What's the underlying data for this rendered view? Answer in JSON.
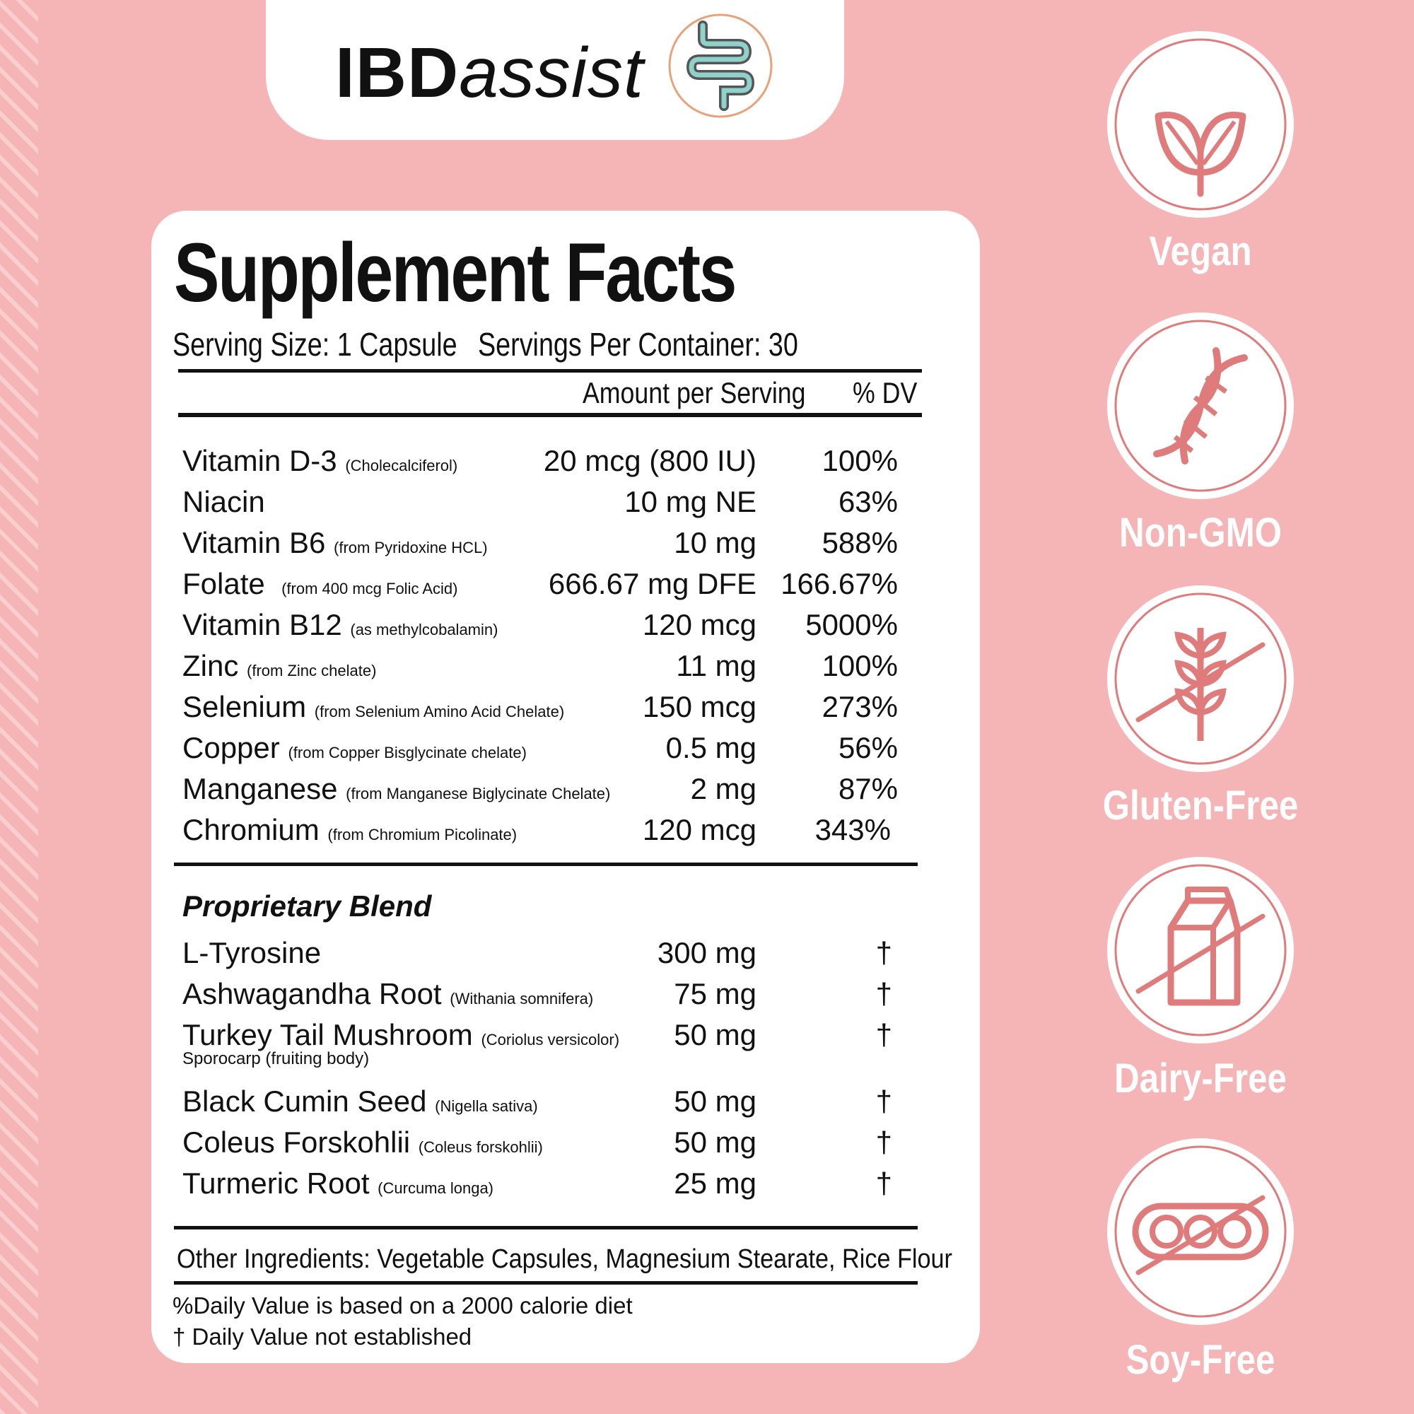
{
  "brand": {
    "bold": "IBD",
    "italic": "assist",
    "icon": "intestine-icon"
  },
  "panel": {
    "title": "Supplement Facts",
    "serving_size": "Serving Size: 1 Capsule",
    "servings_per_container": "Servings Per Container: 30",
    "col_amount": "Amount per Serving",
    "col_dv": "% DV"
  },
  "nutrients": [
    {
      "name": "Vitamin D-3",
      "note": "(Cholecalciferol)",
      "amount": "20 mcg (800 IU)",
      "dv": "100%"
    },
    {
      "name": "Niacin",
      "note": "",
      "amount": "10 mg NE",
      "dv": "63%"
    },
    {
      "name": "Vitamin B6",
      "note": "(from Pyridoxine HCL)",
      "amount": "10 mg",
      "dv": "588%"
    },
    {
      "name": "Folate",
      "note": "(from 400 mcg Folic Acid)",
      "amount": "666.67 mg DFE",
      "dv": "166.67%"
    },
    {
      "name": "Vitamin B12",
      "note": "(as methylcobalamin)",
      "amount": "120 mcg",
      "dv": "5000%"
    },
    {
      "name": "Zinc",
      "note": "(from Zinc chelate)",
      "amount": "11 mg",
      "dv": "100%"
    },
    {
      "name": "Selenium",
      "note": "(from Selenium Amino Acid Chelate)",
      "amount": "150 mcg",
      "dv": "273%"
    },
    {
      "name": "Copper",
      "note": "(from Copper Bisglycinate chelate)",
      "amount": "0.5 mg",
      "dv": "56%"
    },
    {
      "name": "Manganese",
      "note": "(from Manganese Biglycinate Chelate)",
      "amount": "2 mg",
      "dv": "87%"
    },
    {
      "name": "Chromium",
      "note": "(from Chromium Picolinate)",
      "amount": "120 mcg",
      "dv": "343%"
    }
  ],
  "blend": {
    "title": "Proprietary Blend",
    "items": [
      {
        "name": "L-Tyrosine",
        "note": "",
        "amount": "300 mg",
        "dv": "†"
      },
      {
        "name": "Ashwagandha Root",
        "note": "(Withania somnifera)",
        "amount": "75 mg",
        "dv": "†"
      },
      {
        "name": "Turkey Tail Mushroom",
        "note": "(Coriolus versicolor)",
        "amount": "50 mg",
        "dv": "†"
      },
      {
        "name": "Black Cumin Seed",
        "note": "(Nigella sativa)",
        "amount": "50 mg",
        "dv": "†"
      },
      {
        "name": "Coleus Forskohlii",
        "note": "(Coleus forskohlii)",
        "amount": "50 mg",
        "dv": "†"
      },
      {
        "name": "Turmeric Root",
        "note": "(Curcuma longa)",
        "amount": "25 mg",
        "dv": "†"
      }
    ],
    "turkey_tail_sub": "Sporocarp (fruiting body)"
  },
  "other_ingredients": "Other Ingredients:  Vegetable Capsules, Magnesium Stearate, Rice Flour",
  "footnotes": {
    "daily_value": "%Daily Value is based on a 2000 calorie diet",
    "dagger": "† Daily Value not established"
  },
  "badges": [
    {
      "label": "Vegan",
      "icon": "leaf-icon"
    },
    {
      "label": "Non-GMO",
      "icon": "dna-icon"
    },
    {
      "label": "Gluten-Free",
      "icon": "wheat-crossed-icon"
    },
    {
      "label": "Dairy-Free",
      "icon": "milk-carton-crossed-icon"
    },
    {
      "label": "Soy-Free",
      "icon": "soybean-crossed-icon"
    }
  ],
  "colors": {
    "background": "#f5b4b5",
    "accent": "#e07b7b",
    "logo_teal": "#8fd1cb"
  }
}
